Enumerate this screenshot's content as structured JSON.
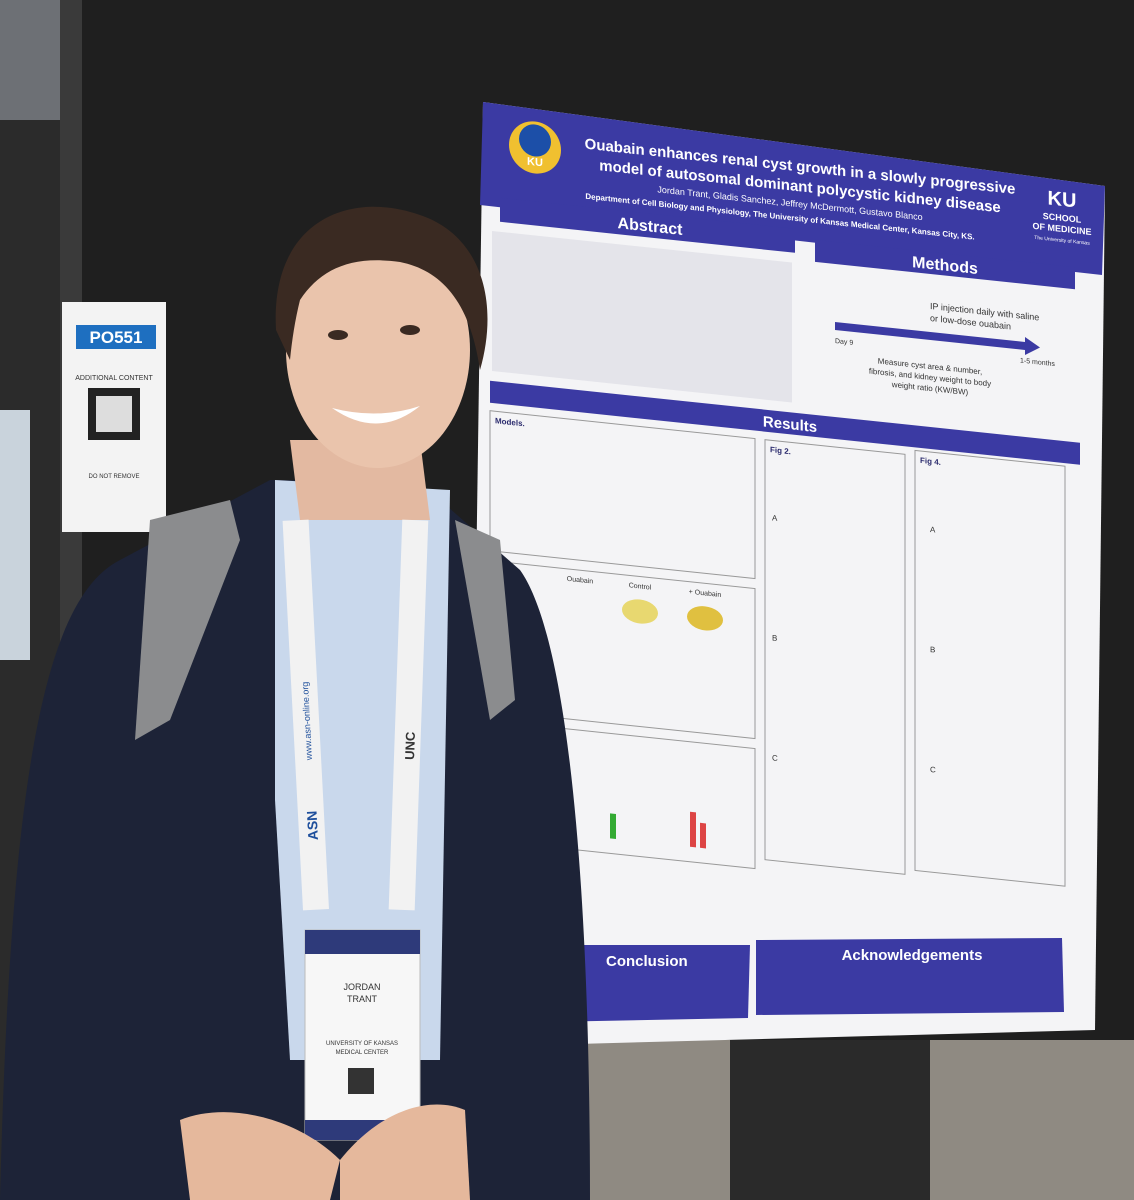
{
  "poster": {
    "title_lines": [
      "Ouabain enhances renal cyst growth in a slowly progressive",
      "model of autosomal dominant polycystic kidney disease"
    ],
    "authors": "Jordan Trant, Gladis Sanchez, Jeffrey McDermott, Gustavo Blanco",
    "affiliation": "Department of Cell Biology and Physiology, The University of Kansas Medical Center, Kansas City, KS.",
    "logo": {
      "mascot": "KU",
      "ku": "KU",
      "school_lines": [
        "SCHOOL",
        "OF MEDICINE"
      ],
      "university": "The University of Kansas"
    },
    "sections": {
      "abstract": "Abstract",
      "methods": "Methods",
      "results": "Results",
      "conclusion": "Conclusion",
      "acknowledgements": "Acknowledgements"
    },
    "methods": {
      "step1_lines": [
        "IP injection daily with saline",
        "or low-dose ouabain"
      ],
      "start": "Day 9",
      "end": "1-5 months",
      "step2_lines": [
        "Measure cyst area & number,",
        "fibrosis, and kidney weight to body",
        "weight ratio (KW/BW)"
      ]
    },
    "results": {
      "models": "Models.",
      "fig2": "Fig 2.",
      "fig4": "Fig 4.",
      "panels": [
        "A",
        "B",
        "C"
      ],
      "images": [
        "Ouabain",
        "Control",
        "+ Ouabain"
      ]
    }
  },
  "sign": {
    "code": "PO551",
    "label": "ADDITIONAL CONTENT",
    "notice": "DO NOT REMOVE"
  },
  "badge": {
    "name_lines": [
      "JORDAN",
      "TRANT"
    ],
    "institution_lines": [
      "UNIVERSITY OF KANSAS",
      "MEDICAL CENTER"
    ]
  },
  "lanyard": {
    "url": "www.asn-online.org",
    "logo": "ASN",
    "school": "UNC"
  }
}
